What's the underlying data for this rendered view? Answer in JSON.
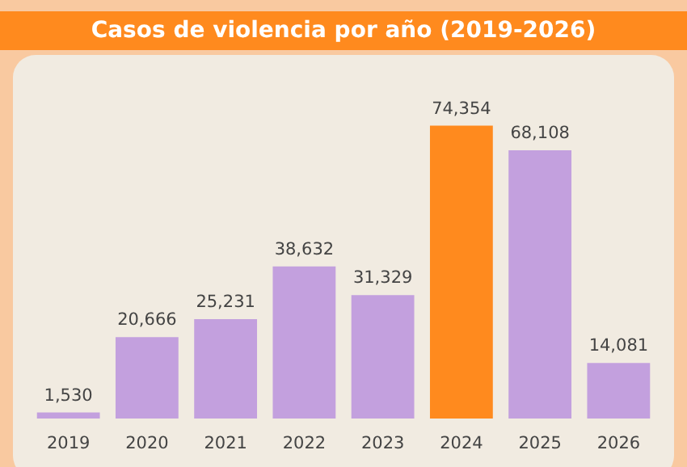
{
  "chart_data": {
    "type": "bar",
    "title": "Casos de violencia por año (2019-2026)",
    "categories": [
      "2019",
      "2020",
      "2021",
      "2022",
      "2023",
      "2024",
      "2025",
      "2026"
    ],
    "values": [
      1530,
      20666,
      25231,
      38632,
      31329,
      74354,
      68108,
      14081
    ],
    "colors": [
      "#c3a0de",
      "#c3a0de",
      "#c3a0de",
      "#c3a0de",
      "#c3a0de",
      "#ff8a1e",
      "#c3a0de",
      "#c3a0de"
    ],
    "value_labels": [
      "1,530",
      "20,666",
      "25,231",
      "38,632",
      "31,329",
      "74,354",
      "68,108",
      "14,081"
    ]
  }
}
